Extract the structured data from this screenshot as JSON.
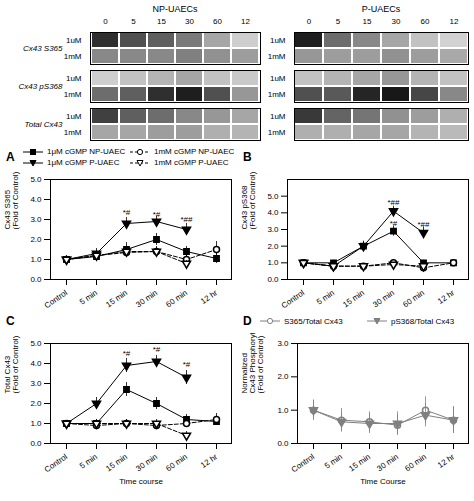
{
  "chart_data": [
    {
      "type": "heatmap",
      "categories": [
        "0",
        "5",
        "15",
        "30",
        "60",
        "12"
      ],
      "rows": [
        "1uM",
        "1mM",
        "1uM",
        "1mM",
        "1uM",
        "1mM"
      ],
      "row_groups": [
        "Cx43 S365",
        "Cx43 pS368",
        "Total Cx43"
      ],
      "panels": [
        {
          "name": "NP-UAECs",
          "cells": [
            [
              0.85,
              0.75,
              0.7,
              0.6,
              0.45,
              0.3
            ],
            [
              0.55,
              0.55,
              0.55,
              0.58,
              0.52,
              0.48
            ],
            [
              0.3,
              0.35,
              0.4,
              0.45,
              0.35,
              0.32
            ],
            [
              0.65,
              0.7,
              0.85,
              0.9,
              0.75,
              0.5
            ],
            [
              0.8,
              0.7,
              0.65,
              0.55,
              0.5,
              0.45
            ],
            [
              0.45,
              0.45,
              0.48,
              0.48,
              0.42,
              0.4
            ]
          ]
        },
        {
          "name": "P-UAECs",
          "cells": [
            [
              0.9,
              0.65,
              0.55,
              0.45,
              0.35,
              0.28
            ],
            [
              0.5,
              0.48,
              0.48,
              0.52,
              0.48,
              0.44
            ],
            [
              0.35,
              0.4,
              0.45,
              0.5,
              0.4,
              0.35
            ],
            [
              0.75,
              0.72,
              0.88,
              0.92,
              0.78,
              0.55
            ],
            [
              0.82,
              0.68,
              0.62,
              0.52,
              0.48,
              0.42
            ],
            [
              0.42,
              0.42,
              0.45,
              0.45,
              0.4,
              0.38
            ]
          ]
        }
      ]
    },
    {
      "type": "line",
      "title": "A",
      "ylabel": "Cx43 S365\n(Fold of Control)",
      "categories": [
        "Control",
        "5 min",
        "15 min",
        "30 min",
        "60 min",
        "12 hr"
      ],
      "series": [
        {
          "name": "1μM cGMP NP-UAEC",
          "color": "black",
          "marker": "square",
          "line_style": "solid",
          "values": [
            1.0,
            1.15,
            1.5,
            2.0,
            1.4,
            1.05
          ],
          "yerr": [
            0.15,
            0.2,
            0.35,
            0.3,
            0.25,
            0.25
          ]
        },
        {
          "name": "1mM cGMP NP-UAEC",
          "color": "black",
          "marker": "circle-open",
          "line_style": "dashed",
          "values": [
            1.0,
            1.2,
            1.35,
            1.4,
            1.0,
            1.5
          ],
          "yerr": [
            0.2,
            0.25,
            0.2,
            0.25,
            0.2,
            0.4
          ]
        },
        {
          "name": "1μM cGMP P-UAEC",
          "color": "black",
          "marker": "triangle-down",
          "line_style": "solid",
          "values": [
            1.0,
            1.3,
            2.8,
            2.9,
            2.5,
            null
          ],
          "yerr": [
            0.15,
            0.25,
            0.3,
            0.25,
            0.3,
            null
          ]
        },
        {
          "name": "1mM cGMP P-UAEC",
          "color": "black",
          "marker": "triangle-down-open",
          "line_style": "dashed",
          "values": [
            1.0,
            1.2,
            1.4,
            1.4,
            0.8,
            null
          ],
          "yerr": [
            0.15,
            0.2,
            0.2,
            0.2,
            0.15,
            null
          ]
        }
      ],
      "ylim": [
        0,
        5
      ],
      "yticks": [
        0,
        1,
        2,
        3,
        4,
        5
      ],
      "annotations": [
        {
          "text": "*#",
          "x": "15 min",
          "y": 3.2
        },
        {
          "text": "*#",
          "x": "30 min",
          "y": 3.1
        },
        {
          "text": "*##",
          "x": "60 min",
          "y": 2.85
        }
      ],
      "legend": "top"
    },
    {
      "type": "line",
      "title": "B",
      "ylabel": "Cx43 pS368\n(Fold of Control)",
      "categories": [
        "Control",
        "5 min",
        "15 min",
        "30 min",
        "60 min",
        "12 hr"
      ],
      "series": [
        {
          "color": "black",
          "marker": "square",
          "line_style": "solid",
          "values": [
            1.0,
            1.0,
            2.0,
            2.9,
            1.0,
            1.0
          ],
          "yerr": [
            0.1,
            0.15,
            0.25,
            0.3,
            0.15,
            0.1
          ]
        },
        {
          "color": "black",
          "marker": "circle-open",
          "line_style": "dashed",
          "values": [
            1.0,
            0.8,
            0.8,
            1.0,
            0.7,
            1.0
          ],
          "yerr": [
            0.1,
            0.1,
            0.1,
            0.15,
            0.1,
            0.2
          ]
        },
        {
          "color": "black",
          "marker": "triangle-down",
          "line_style": "solid",
          "values": [
            1.0,
            0.8,
            2.0,
            4.1,
            2.8,
            null
          ],
          "yerr": [
            0.1,
            0.15,
            0.3,
            0.3,
            0.35,
            null
          ]
        },
        {
          "color": "black",
          "marker": "triangle-down-open",
          "line_style": "dashed",
          "values": [
            1.0,
            0.8,
            0.8,
            0.9,
            0.8,
            null
          ],
          "yerr": [
            0.1,
            0.1,
            0.15,
            0.1,
            0.1,
            null
          ]
        }
      ],
      "ylim": [
        0,
        6
      ],
      "yticks": [
        0,
        1,
        2,
        3,
        4,
        5
      ],
      "annotations": [
        {
          "text": "*##",
          "x": "30 min",
          "y": 4.4
        },
        {
          "text": "*#",
          "x": "30 min",
          "y": 3.15
        },
        {
          "text": "*##",
          "x": "60 min",
          "y": 3.1
        }
      ]
    },
    {
      "type": "line",
      "title": "C",
      "ylabel": "Total Cx43\n(Fold of Control)",
      "xlabel": "Time course",
      "categories": [
        "Control",
        "5 min",
        "15 min",
        "30 min",
        "60 min",
        "12 hr"
      ],
      "series": [
        {
          "color": "black",
          "marker": "square",
          "line_style": "solid",
          "values": [
            1.0,
            1.0,
            2.7,
            2.0,
            1.2,
            1.1
          ],
          "yerr": [
            0.1,
            0.2,
            0.35,
            0.3,
            0.25,
            0.2
          ]
        },
        {
          "color": "black",
          "marker": "circle-open",
          "line_style": "dashed",
          "values": [
            1.0,
            0.9,
            1.0,
            0.9,
            1.0,
            1.2
          ],
          "yerr": [
            0.1,
            0.15,
            0.2,
            0.15,
            0.15,
            0.3
          ]
        },
        {
          "color": "black",
          "marker": "triangle-down",
          "line_style": "solid",
          "values": [
            1.0,
            2.0,
            3.9,
            4.1,
            3.3,
            null
          ],
          "yerr": [
            0.1,
            0.3,
            0.35,
            0.3,
            0.35,
            null
          ]
        },
        {
          "color": "black",
          "marker": "triangle-down-open",
          "line_style": "dashed",
          "values": [
            1.0,
            1.0,
            1.0,
            1.0,
            0.4,
            null
          ],
          "yerr": [
            0.1,
            0.2,
            0.2,
            0.2,
            0.2,
            null
          ]
        }
      ],
      "ylim": [
        0,
        5
      ],
      "yticks": [
        0,
        1,
        2,
        3,
        4,
        5
      ],
      "annotations": [
        {
          "text": "*#",
          "x": "15 min",
          "y": 4.35
        },
        {
          "text": "*#",
          "x": "30 min",
          "y": 4.55
        },
        {
          "text": "*#",
          "x": "60 min",
          "y": 3.8
        }
      ]
    },
    {
      "type": "line",
      "title": "D",
      "ylabel": "Normalized\nCx43 Phosphorylation\n(Fold of Control)",
      "xlabel": "Time Course",
      "categories": [
        "Control",
        "5 min",
        "15 min",
        "30 min",
        "60 min",
        "12 hr"
      ],
      "series": [
        {
          "name": "S365/Total Cx43",
          "color": "gray",
          "marker": "circle-open",
          "line_style": "solid",
          "values": [
            1.0,
            0.7,
            0.65,
            0.55,
            1.0,
            0.7
          ],
          "yerr": [
            0.3,
            0.35,
            0.3,
            0.3,
            0.4,
            0.4
          ]
        },
        {
          "name": "pS368/Total Cx43",
          "color": "gray",
          "marker": "triangle-down",
          "line_style": "solid",
          "values": [
            1.0,
            0.65,
            0.6,
            0.6,
            0.85,
            0.7
          ],
          "yerr": [
            0.3,
            0.3,
            0.3,
            0.35,
            0.35,
            0.4
          ]
        }
      ],
      "ylim": [
        0,
        3
      ],
      "yticks": [
        0,
        1,
        2,
        3
      ],
      "legend": "top"
    }
  ]
}
